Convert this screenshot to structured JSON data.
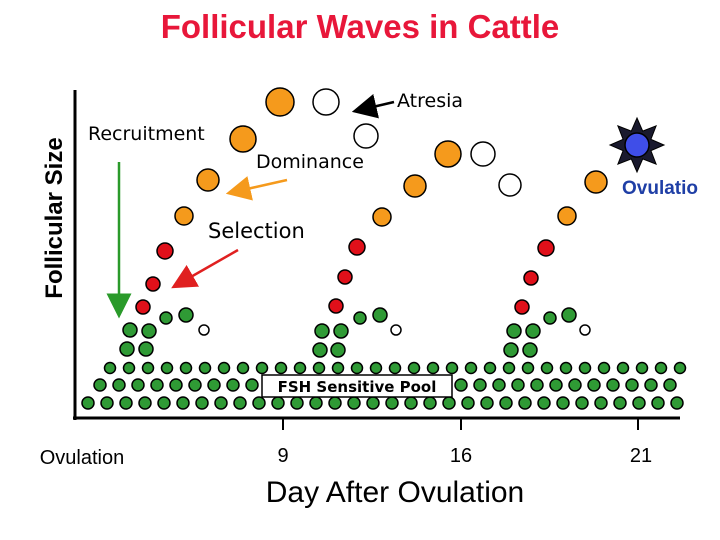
{
  "title": "Follicular Waves in Cattle",
  "y_axis_label": "Follicular Size",
  "x_axis_label": "Day After Ovulation",
  "ticks": [
    {
      "label": "Ovulation"
    },
    {
      "label": "9"
    },
    {
      "label": "16"
    },
    {
      "label": "21"
    }
  ],
  "labels": {
    "recruitment": "Recruitment",
    "selection": "Selection",
    "dominance": "Dominance",
    "atresia": "Atresia",
    "ovulation_right": "Ovulatio",
    "fsh_pool": "FSH Sensitive Pool"
  },
  "colors": {
    "title": "#e8173a",
    "dominant": "#f59a1c",
    "selected": "#e0101a",
    "recruited": "#2f9a35",
    "atretic": "#ffffff",
    "ovulatory": "#3f4ee8",
    "recruitment_arrow": "#2a9a2a",
    "dominance_arrow": "#f59a1c",
    "selection_arrow": "#e02020"
  },
  "icons": [
    "ovulation-burst-icon"
  ]
}
